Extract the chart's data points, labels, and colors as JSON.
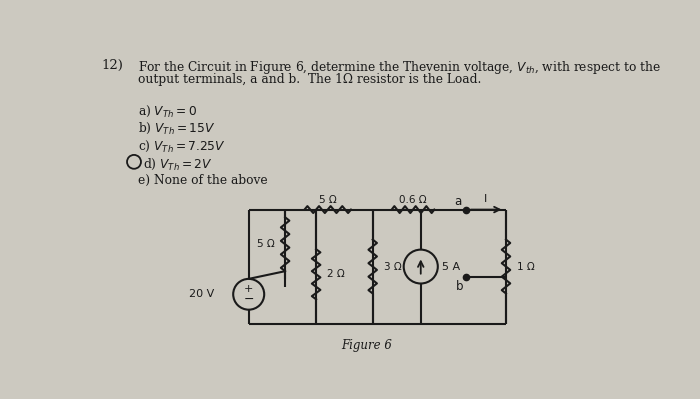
{
  "bg_color": "#ccc9c0",
  "text_color": "#1a1a1a",
  "question_num": "12)",
  "q_line1": "For the Circuit in Figure 6, determine the Thevenin voltage, $V_{th}$, with respect to the",
  "q_line2": "output terminals, a and b.  The 1Ω resistor is the Load.",
  "opt_a": "a) $V_{Th} = 0$",
  "opt_b": "b) $V_{Th} = 15V$",
  "opt_c": "c) $V_{Th} = 7.25V$",
  "opt_d": "d) $V_{Th} = 2V$",
  "opt_e": "e) None of the above",
  "figure_label": "Figure 6",
  "R1_label": "5 Ω",
  "R2_label": "5 Ω",
  "R3_label": "2 Ω",
  "R4_label": "3 Ω",
  "R5_label": "0.6 Ω",
  "R6_label": "1 Ω",
  "VS_label": "20 V",
  "IS_label": "5 A",
  "term_a": "a",
  "term_b": "b",
  "arr_label": "I"
}
